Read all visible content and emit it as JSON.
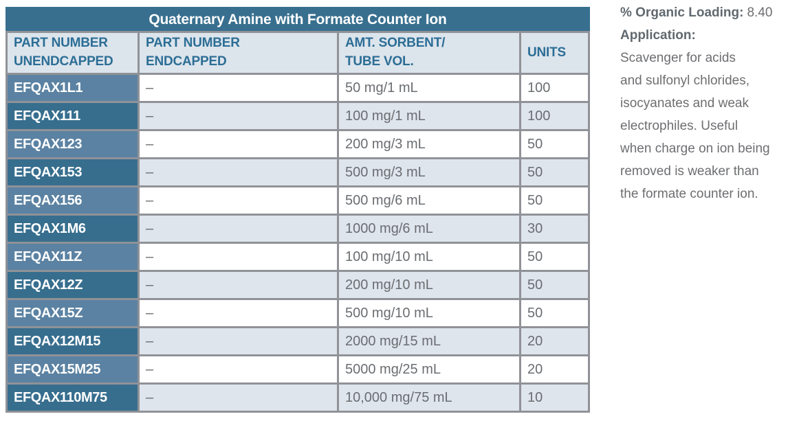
{
  "table": {
    "title": "Quaternary Amine with Formate Counter Ion",
    "headers": {
      "col1": "PART NUMBER\nUNENDCAPPED",
      "col2": "PART NUMBER\nENDCAPPED",
      "col3": "AMT. SORBENT/\nTUBE VOL.",
      "col4": "UNITS"
    },
    "rows": [
      {
        "unendcapped": "EFQAX1L1",
        "endcapped": "–",
        "amount": "50 mg/1 mL",
        "units": "100"
      },
      {
        "unendcapped": "EFQAX111",
        "endcapped": "–",
        "amount": "100 mg/1 mL",
        "units": "100"
      },
      {
        "unendcapped": "EFQAX123",
        "endcapped": "–",
        "amount": "200 mg/3 mL",
        "units": "50"
      },
      {
        "unendcapped": "EFQAX153",
        "endcapped": "–",
        "amount": "500 mg/3 mL",
        "units": "50"
      },
      {
        "unendcapped": "EFQAX156",
        "endcapped": "–",
        "amount": "500 mg/6 mL",
        "units": "50"
      },
      {
        "unendcapped": "EFQAX1M6",
        "endcapped": "–",
        "amount": "1000 mg/6 mL",
        "units": "30"
      },
      {
        "unendcapped": "EFQAX11Z",
        "endcapped": "–",
        "amount": "100 mg/10 mL",
        "units": "50"
      },
      {
        "unendcapped": "EFQAX12Z",
        "endcapped": "–",
        "amount": "200 mg/10 mL",
        "units": "50"
      },
      {
        "unendcapped": "EFQAX15Z",
        "endcapped": "–",
        "amount": "500 mg/10 mL",
        "units": "50"
      },
      {
        "unendcapped": "EFQAX12M15",
        "endcapped": "–",
        "amount": "2000 mg/15 mL",
        "units": "20"
      },
      {
        "unendcapped": "EFQAX15M25",
        "endcapped": "–",
        "amount": "5000 mg/25 mL",
        "units": "20"
      },
      {
        "unendcapped": "EFQAX110M75",
        "endcapped": "–",
        "amount": "10,000 mg/75 mL",
        "units": "10"
      }
    ]
  },
  "side_panel": {
    "organic_loading_label": "% Organic Loading:",
    "organic_loading_value": "8.40",
    "application_label": "Application:",
    "application_text": "Scavenger for acids\nand sulfonyl chlorides,\nisocyanates and weak\nelectrophiles. Useful\nwhen charge on ion being\nremoved is weaker than\nthe formate counter ion."
  },
  "colors": {
    "title_bar": "#386f8f",
    "part_cell_light": "#5b82a2",
    "part_cell_dark": "#376e8e",
    "header_bg": "#dce4ec",
    "header_text": "#2c6e95",
    "row_alt_bg": "#dfe5ed",
    "border": "#909297",
    "body_text": "#6a6d71"
  }
}
